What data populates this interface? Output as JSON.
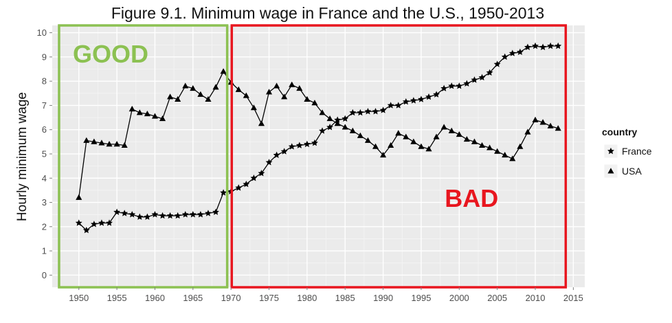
{
  "chart_data": {
    "type": "line",
    "title": "Figure 9.1. Minimum wage in France and the U.S., 1950-2013",
    "xlabel": "",
    "ylabel": "Hourly minimum wage",
    "xlim": [
      1946.5,
      2016.5
    ],
    "ylim": [
      -0.5,
      10.3
    ],
    "xticks": [
      1950,
      1955,
      1960,
      1965,
      1970,
      1975,
      1980,
      1985,
      1990,
      1995,
      2000,
      2005,
      2010,
      2015
    ],
    "yticks": [
      0,
      1,
      2,
      3,
      4,
      5,
      6,
      7,
      8,
      9,
      10
    ],
    "grid": true,
    "legend": {
      "title": "country",
      "placement": "right"
    },
    "series": [
      {
        "name": "France",
        "marker": "star",
        "x": [
          1950,
          1951,
          1952,
          1953,
          1954,
          1955,
          1956,
          1957,
          1958,
          1959,
          1960,
          1961,
          1962,
          1963,
          1964,
          1965,
          1966,
          1967,
          1968,
          1969,
          1970,
          1971,
          1972,
          1973,
          1974,
          1975,
          1976,
          1977,
          1978,
          1979,
          1980,
          1981,
          1982,
          1983,
          1984,
          1985,
          1986,
          1987,
          1988,
          1989,
          1990,
          1991,
          1992,
          1993,
          1994,
          1995,
          1996,
          1997,
          1998,
          1999,
          2000,
          2001,
          2002,
          2003,
          2004,
          2005,
          2006,
          2007,
          2008,
          2009,
          2010,
          2011,
          2012,
          2013
        ],
        "values": [
          2.15,
          1.85,
          2.1,
          2.15,
          2.15,
          2.6,
          2.55,
          2.5,
          2.4,
          2.4,
          2.5,
          2.45,
          2.45,
          2.45,
          2.5,
          2.5,
          2.5,
          2.55,
          2.6,
          3.4,
          3.45,
          3.6,
          3.75,
          4.0,
          4.2,
          4.65,
          4.95,
          5.1,
          5.3,
          5.35,
          5.4,
          5.45,
          5.95,
          6.1,
          6.4,
          6.45,
          6.7,
          6.7,
          6.75,
          6.75,
          6.8,
          7.0,
          7.0,
          7.15,
          7.2,
          7.25,
          7.35,
          7.45,
          7.7,
          7.8,
          7.8,
          7.9,
          8.05,
          8.15,
          8.35,
          8.7,
          9.0,
          9.15,
          9.2,
          9.4,
          9.45,
          9.4,
          9.45,
          9.45
        ]
      },
      {
        "name": "USA",
        "marker": "triangle",
        "x": [
          1950,
          1951,
          1952,
          1953,
          1954,
          1955,
          1956,
          1957,
          1958,
          1959,
          1960,
          1961,
          1962,
          1963,
          1964,
          1965,
          1966,
          1967,
          1968,
          1969,
          1970,
          1971,
          1972,
          1973,
          1974,
          1975,
          1976,
          1977,
          1978,
          1979,
          1980,
          1981,
          1982,
          1983,
          1984,
          1985,
          1986,
          1987,
          1988,
          1989,
          1990,
          1991,
          1992,
          1993,
          1994,
          1995,
          1996,
          1997,
          1998,
          1999,
          2000,
          2001,
          2002,
          2003,
          2004,
          2005,
          2006,
          2007,
          2008,
          2009,
          2010,
          2011,
          2012,
          2013
        ],
        "values": [
          3.2,
          5.55,
          5.5,
          5.45,
          5.4,
          5.4,
          5.35,
          6.85,
          6.7,
          6.65,
          6.55,
          6.45,
          7.35,
          7.25,
          7.8,
          7.7,
          7.45,
          7.25,
          7.75,
          8.4,
          7.95,
          7.65,
          7.4,
          6.9,
          6.25,
          7.55,
          7.8,
          7.35,
          7.85,
          7.7,
          7.25,
          7.1,
          6.7,
          6.45,
          6.25,
          6.1,
          5.95,
          5.75,
          5.55,
          5.3,
          4.95,
          5.35,
          5.85,
          5.7,
          5.5,
          5.3,
          5.2,
          5.7,
          6.1,
          5.95,
          5.8,
          5.6,
          5.5,
          5.35,
          5.25,
          5.1,
          4.95,
          4.8,
          5.3,
          5.9,
          6.4,
          6.3,
          6.15,
          6.05
        ]
      }
    ],
    "annotations": [
      {
        "text": "GOOD",
        "color": "#8cc152",
        "x_range": [
          1947.4,
          1969.5
        ],
        "y_range": [
          -0.5,
          10.3
        ]
      },
      {
        "text": "BAD",
        "color": "#e8161f",
        "x_range": [
          1970.1,
          2014.0
        ],
        "y_range": [
          -0.5,
          10.3
        ]
      }
    ],
    "colors": {
      "panel_background": "#ebebeb",
      "grid_major": "#ffffff",
      "grid_minor": "#f5f5f5",
      "series_line": "#000000"
    }
  }
}
